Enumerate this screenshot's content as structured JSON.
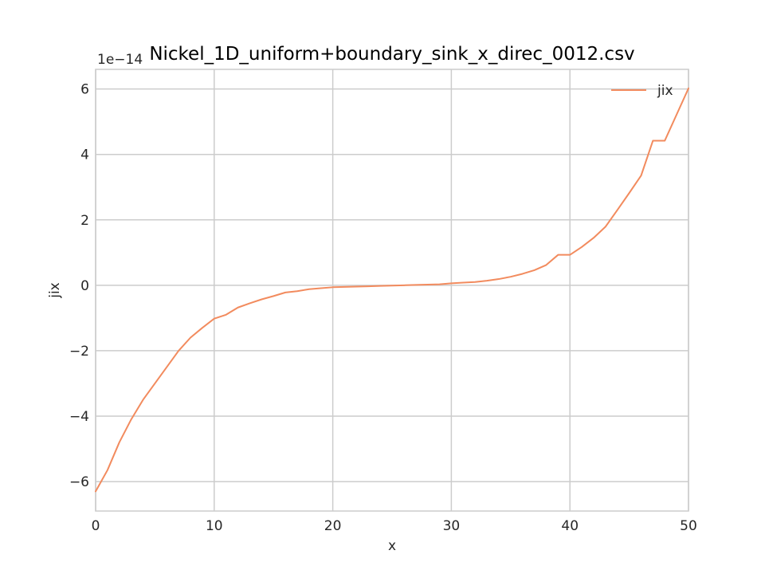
{
  "chart_data": {
    "type": "line",
    "title": "Nickel_1D_uniform+boundary_sink_x_direc_0012.csv",
    "xlabel": "x",
    "ylabel": "jix",
    "y_offset_label": "1e−14",
    "xlim": [
      0,
      50
    ],
    "ylim": [
      -6.9,
      6.6
    ],
    "x_ticks": [
      0,
      10,
      20,
      30,
      40,
      50
    ],
    "x_tick_labels": [
      "0",
      "10",
      "20",
      "30",
      "40",
      "50"
    ],
    "y_ticks": [
      -6,
      -4,
      -2,
      0,
      2,
      4,
      6
    ],
    "y_tick_labels": [
      "−6",
      "−4",
      "−2",
      "0",
      "2",
      "4",
      "6"
    ],
    "grid": true,
    "legend_position": "top-right",
    "series": [
      {
        "name": "jix",
        "color": "#f28b5e",
        "x": [
          0,
          1,
          2,
          3,
          4,
          5,
          6,
          7,
          8,
          9,
          10,
          11,
          12,
          13,
          14,
          15,
          16,
          17,
          18,
          19,
          20,
          21,
          22,
          23,
          24,
          25,
          26,
          27,
          28,
          29,
          30,
          31,
          32,
          33,
          34,
          35,
          36,
          37,
          38,
          39,
          40,
          41,
          42,
          43,
          44,
          45,
          46,
          47,
          48,
          49,
          50
        ],
        "values": [
          -6.3,
          -5.65,
          -4.8,
          -4.1,
          -3.5,
          -3.0,
          -2.5,
          -2.0,
          -1.6,
          -1.3,
          -1.02,
          -0.9,
          -0.68,
          -0.55,
          -0.43,
          -0.33,
          -0.22,
          -0.18,
          -0.12,
          -0.09,
          -0.06,
          -0.05,
          -0.04,
          -0.03,
          -0.02,
          -0.01,
          0.0,
          0.01,
          0.02,
          0.03,
          0.06,
          0.08,
          0.1,
          0.14,
          0.19,
          0.26,
          0.35,
          0.46,
          0.62,
          0.93,
          0.93,
          1.17,
          1.45,
          1.79,
          2.3,
          2.82,
          3.35,
          4.42,
          4.42,
          5.22,
          6.02
        ]
      }
    ]
  }
}
